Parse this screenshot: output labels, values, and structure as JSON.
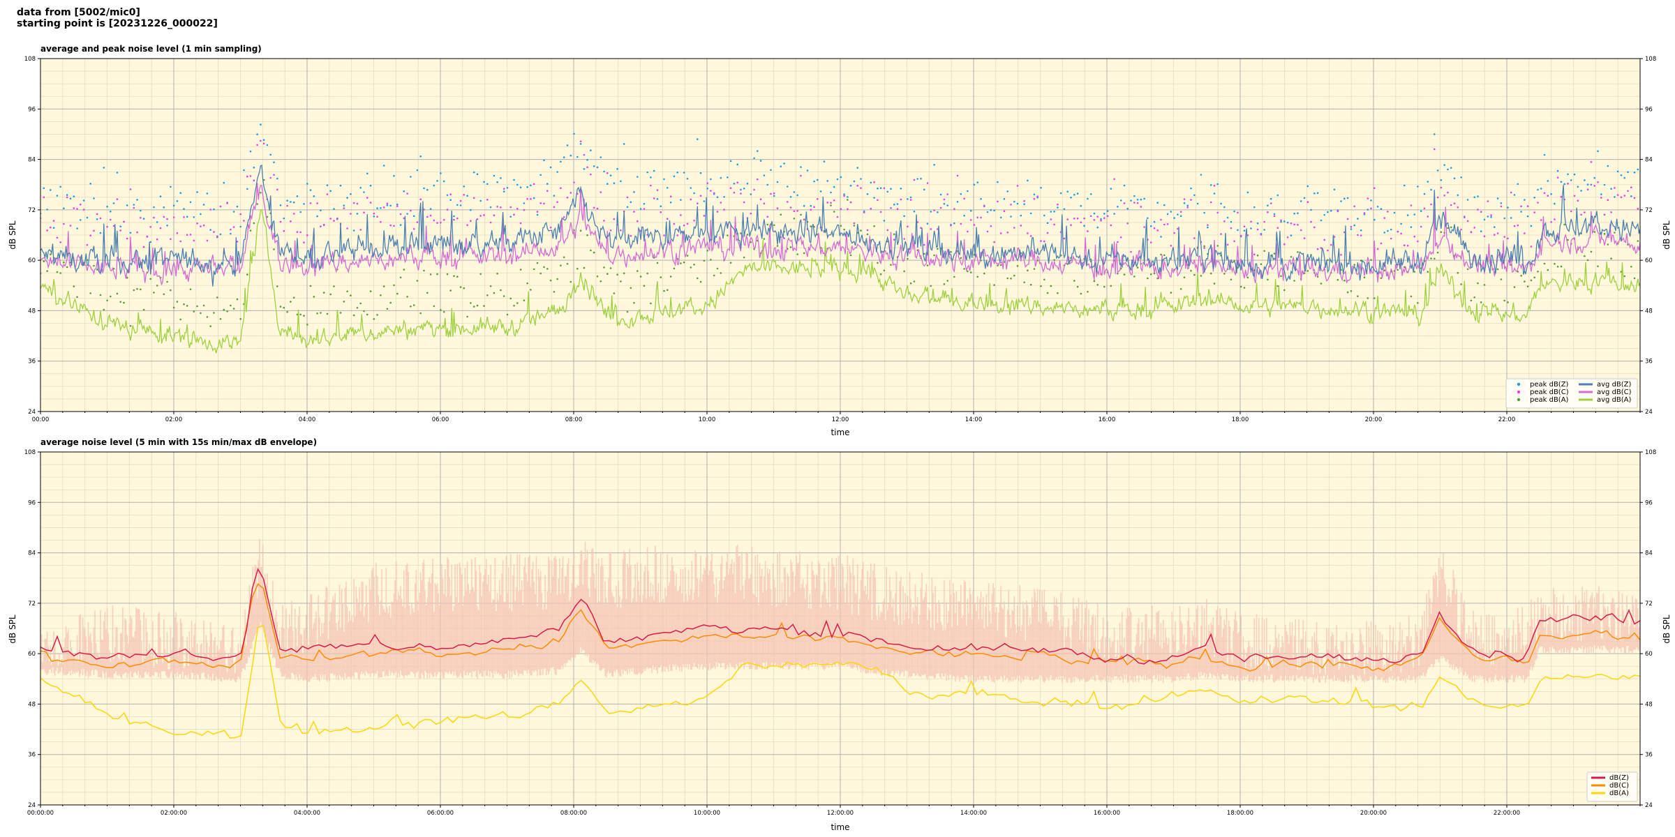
{
  "header": {
    "line1": "data from [5002/mic0]",
    "line2": "starting point is [20231226_000022]"
  },
  "colors": {
    "panel_bg": "#fff8dc",
    "grid_major": "#b0b0b0",
    "grid_minor": "#e6dcc0",
    "peak_z": "#1f9be0",
    "peak_c": "#e83ee8",
    "peak_a": "#5a9a32",
    "avg_z": "#4a7fb0",
    "avg_c": "#d46ad4",
    "avg_a": "#9ed040",
    "z2": "#d81b4a",
    "c2": "#ff8c00",
    "a2": "#ffd700",
    "envelope": "#f4c4b4"
  },
  "chart_data": [
    {
      "type": "line",
      "title": "average and peak noise level (1 min sampling)",
      "xlabel": "time",
      "ylabel": "dB SPL",
      "xlim_hours": [
        0,
        24
      ],
      "ylim": [
        24,
        108
      ],
      "yticks": [
        24,
        36,
        48,
        60,
        72,
        84,
        96,
        108
      ],
      "xticks": [
        "00:00",
        "02:00",
        "04:00",
        "06:00",
        "08:00",
        "10:00",
        "12:00",
        "14:00",
        "16:00",
        "18:00",
        "20:00",
        "22:00"
      ],
      "grid": true,
      "legend_position": "lower-right",
      "legend": [
        {
          "label": "peak dB(Z)",
          "kind": "dot",
          "color": "#1f9be0"
        },
        {
          "label": "peak dB(C)",
          "kind": "dot",
          "color": "#e83ee8"
        },
        {
          "label": "peak dB(A)",
          "kind": "dot",
          "color": "#5a9a32"
        },
        {
          "label": "avg dB(Z)",
          "kind": "line",
          "color": "#4a7fb0"
        },
        {
          "label": "avg dB(C)",
          "kind": "line",
          "color": "#d46ad4"
        },
        {
          "label": "avg dB(A)",
          "kind": "line",
          "color": "#9ed040"
        }
      ],
      "series_profiles": {
        "x_hours": [
          0,
          1,
          2,
          3,
          3.3,
          3.6,
          4,
          5,
          6,
          7,
          7.8,
          8.1,
          8.5,
          9,
          10,
          10.6,
          11,
          12,
          12.4,
          13,
          14,
          15,
          16,
          17,
          17.5,
          18,
          19,
          20,
          20.7,
          21,
          21.5,
          22,
          22.3,
          22.5,
          23,
          23.5,
          24
        ],
        "avg_z": [
          61,
          59.5,
          60,
          59,
          82,
          62,
          61,
          63,
          64,
          64,
          67,
          75,
          64,
          65,
          67,
          67,
          67,
          66,
          65,
          63,
          62,
          62,
          60,
          60,
          62,
          59,
          59,
          59,
          60,
          70,
          61,
          60,
          59,
          67,
          68,
          68,
          67
        ],
        "avg_c": [
          59.5,
          58,
          58,
          57.5,
          78,
          59,
          59,
          60,
          61,
          61,
          63,
          70,
          61,
          62,
          63,
          63,
          63,
          63,
          62,
          61,
          60,
          60,
          58,
          58,
          59,
          57.5,
          57.5,
          57.5,
          58,
          66,
          59,
          58,
          57.5,
          64,
          65,
          65,
          64
        ],
        "avg_a": [
          54,
          45,
          42,
          40,
          72,
          44,
          41,
          43,
          44,
          44,
          48,
          57,
          46,
          47,
          49,
          58,
          58,
          58,
          58,
          51,
          50,
          49,
          48,
          49,
          51,
          49,
          49,
          48,
          47,
          57,
          48,
          47,
          47,
          54,
          55,
          55,
          54
        ]
      }
    },
    {
      "type": "line",
      "title": "average noise level (5 min with 15s min/max dB envelope)",
      "xlabel": "time",
      "ylabel": "dB SPL",
      "xlim_hours": [
        0,
        24
      ],
      "ylim": [
        24,
        108
      ],
      "yticks": [
        24,
        36,
        48,
        60,
        72,
        84,
        96,
        108
      ],
      "xticks": [
        "00:00:00",
        "02:00:00",
        "04:00:00",
        "06:00:00",
        "08:00:00",
        "10:00:00",
        "12:00:00",
        "14:00:00",
        "16:00:00",
        "18:00:00",
        "20:00:00",
        "22:00:00"
      ],
      "grid": true,
      "legend_position": "lower-right",
      "legend": [
        {
          "label": "dB(Z)",
          "kind": "line",
          "color": "#d81b4a"
        },
        {
          "label": "dB(C)",
          "kind": "line",
          "color": "#ff8c00"
        },
        {
          "label": "dB(A)",
          "kind": "line",
          "color": "#ffd700"
        }
      ],
      "series_profiles": {
        "x_hours": [
          0,
          1,
          2,
          3,
          3.3,
          3.6,
          4,
          5,
          6,
          7,
          7.8,
          8.1,
          8.5,
          9,
          10,
          10.6,
          11,
          12,
          12.4,
          13,
          14,
          15,
          16,
          17,
          17.5,
          18,
          19,
          20,
          20.7,
          21,
          21.5,
          22,
          22.3,
          22.5,
          23,
          23.5,
          24
        ],
        "z": [
          61,
          59.5,
          60,
          59,
          81,
          61,
          61,
          62,
          62,
          63,
          66,
          73,
          63,
          64,
          66,
          66,
          66,
          65,
          64,
          62,
          61,
          61,
          59,
          59,
          61,
          59,
          59,
          58.5,
          60,
          70,
          61,
          60,
          59,
          68,
          68,
          68,
          67
        ],
        "c": [
          59.5,
          58,
          58.5,
          57.5,
          78,
          59,
          59,
          60,
          60,
          61,
          63,
          71,
          61,
          62,
          64,
          64,
          64,
          63,
          62,
          60.5,
          59.5,
          59.5,
          57.5,
          58,
          59,
          57.5,
          57.5,
          57,
          58,
          68,
          59,
          58,
          57.5,
          64,
          64,
          64,
          63.5
        ],
        "a": [
          54,
          45,
          42,
          40,
          70,
          44,
          41,
          43,
          44,
          45,
          48,
          55,
          46,
          47,
          49,
          58,
          57.5,
          57.5,
          57,
          51,
          50,
          49,
          48,
          49,
          51,
          49,
          49,
          48,
          47,
          55,
          48,
          47,
          47,
          54,
          55,
          55,
          54
        ],
        "envelope_low": [
          57,
          56,
          56,
          55,
          68,
          56,
          55,
          56,
          56,
          56,
          57,
          62,
          56,
          57,
          58,
          58,
          58,
          58,
          57,
          56,
          55,
          55,
          55,
          55,
          56,
          55,
          55,
          55,
          55,
          60,
          55,
          55,
          55,
          62,
          62,
          62,
          62
        ],
        "envelope_high": [
          66,
          72,
          70,
          66,
          90,
          72,
          74,
          82,
          84,
          84,
          84,
          88,
          84,
          86,
          86,
          86,
          85,
          84,
          82,
          80,
          78,
          76,
          72,
          72,
          74,
          70,
          68,
          68,
          70,
          86,
          72,
          70,
          72,
          76,
          76,
          76,
          76
        ]
      }
    }
  ]
}
